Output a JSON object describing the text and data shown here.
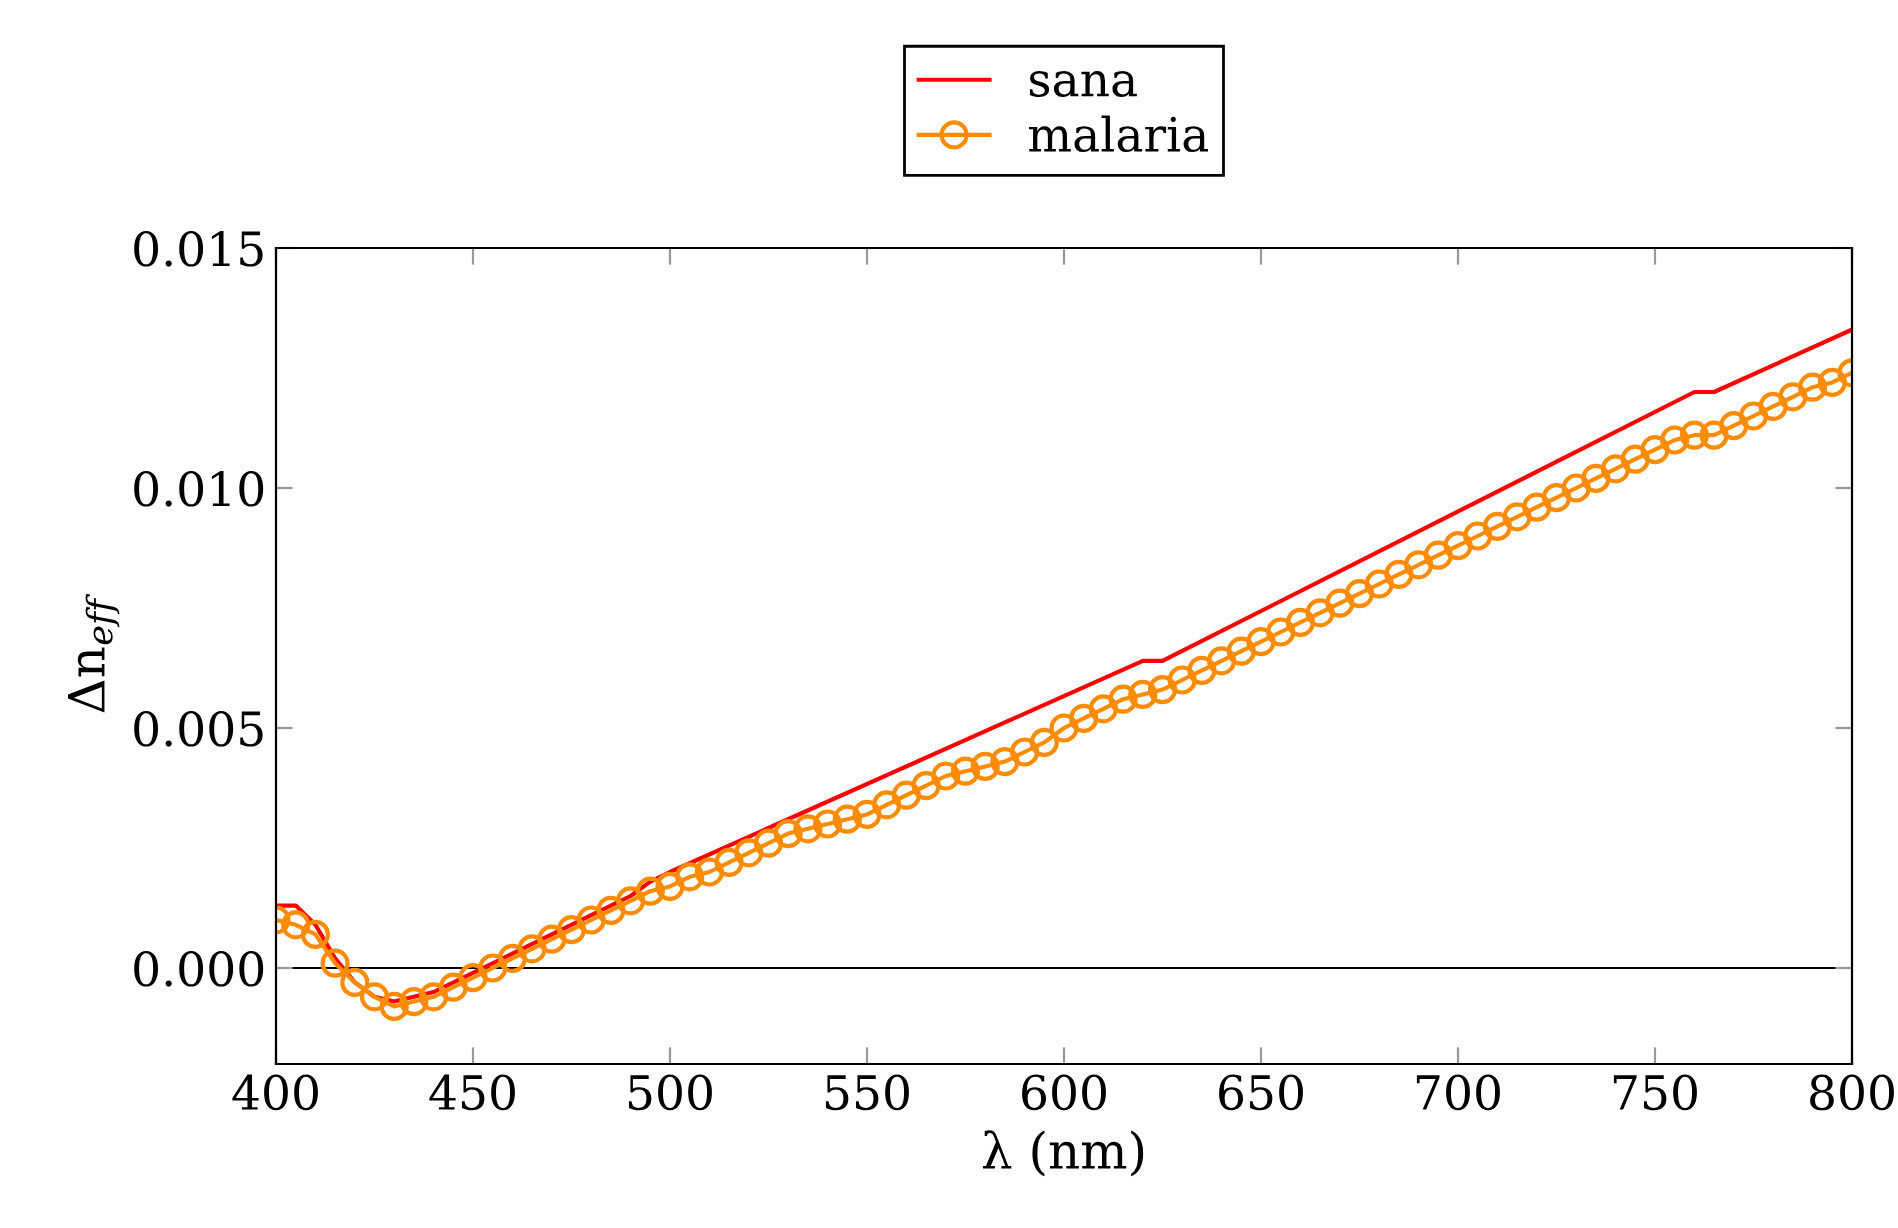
{
  "chart_data": {
    "type": "line",
    "xlabel": "λ (nm)",
    "ylabel": "Δn$_{eff}$",
    "xlim": [
      400,
      800
    ],
    "ylim": [
      -0.002,
      0.015
    ],
    "xticks": [
      400,
      450,
      500,
      550,
      600,
      650,
      700,
      750,
      800
    ],
    "yticks": [
      {
        "value": 0,
        "label": "0.000"
      },
      {
        "value": 0.005,
        "label": "0.005"
      },
      {
        "value": 0.01,
        "label": "0.010"
      },
      {
        "value": 0.015,
        "label": "0.015"
      }
    ],
    "grid": false,
    "legend": "top",
    "ref_lines": [
      {
        "axis": "y",
        "value": 0,
        "color": "#000000",
        "line_style": "solid"
      }
    ],
    "series": [
      {
        "name": "sana",
        "color": "#ff0000",
        "marker": "none",
        "x": [
          400,
          405,
          410,
          415,
          420,
          425,
          430,
          440,
          450,
          460,
          470,
          480,
          490,
          495,
          500,
          620,
          625,
          760,
          765,
          800
        ],
        "values": [
          0.0013,
          0.0013,
          0.0009,
          0.0002,
          -0.0003,
          -0.0006,
          -0.0007,
          -0.0005,
          -0.0001,
          0.0003,
          0.0007,
          0.0011,
          0.0015,
          0.0018,
          0.002,
          0.0064,
          0.0064,
          0.012,
          0.012,
          0.0133
        ]
      },
      {
        "name": "malaria",
        "color": "#ff8c00",
        "marker": "circle",
        "x": [
          400,
          405,
          410,
          415,
          420,
          425,
          430,
          435,
          440,
          445,
          450,
          455,
          460,
          465,
          470,
          475,
          480,
          485,
          490,
          495,
          500,
          505,
          510,
          515,
          520,
          525,
          530,
          535,
          540,
          545,
          550,
          555,
          560,
          565,
          570,
          575,
          580,
          585,
          590,
          595,
          600,
          605,
          610,
          615,
          620,
          625,
          630,
          635,
          640,
          645,
          650,
          655,
          660,
          665,
          670,
          675,
          680,
          685,
          690,
          695,
          700,
          705,
          710,
          715,
          720,
          725,
          730,
          735,
          740,
          745,
          750,
          755,
          760,
          765,
          770,
          775,
          780,
          785,
          790,
          795,
          800
        ],
        "values": [
          0.001,
          0.0009,
          0.0007,
          0.0001,
          -0.0003,
          -0.0006,
          -0.0008,
          -0.0007,
          -0.0006,
          -0.0004,
          -0.0002,
          0.0,
          0.0002,
          0.0004,
          0.0006,
          0.0008,
          0.001,
          0.0012,
          0.0014,
          0.0016,
          0.0017,
          0.0019,
          0.002,
          0.0022,
          0.0024,
          0.0026,
          0.0028,
          0.0029,
          0.003,
          0.0031,
          0.0032,
          0.0034,
          0.0036,
          0.0038,
          0.004,
          0.0041,
          0.0042,
          0.0043,
          0.0045,
          0.0047,
          0.005,
          0.0052,
          0.0054,
          0.0056,
          0.0057,
          0.0058,
          0.006,
          0.0062,
          0.0064,
          0.0066,
          0.0068,
          0.007,
          0.0072,
          0.0074,
          0.0076,
          0.0078,
          0.008,
          0.0082,
          0.0084,
          0.0086,
          0.0088,
          0.009,
          0.0092,
          0.0094,
          0.0096,
          0.0098,
          0.01,
          0.0102,
          0.0104,
          0.0106,
          0.0108,
          0.011,
          0.0111,
          0.0111,
          0.0113,
          0.0115,
          0.0117,
          0.0119,
          0.0121,
          0.0122,
          0.0124
        ]
      }
    ]
  }
}
